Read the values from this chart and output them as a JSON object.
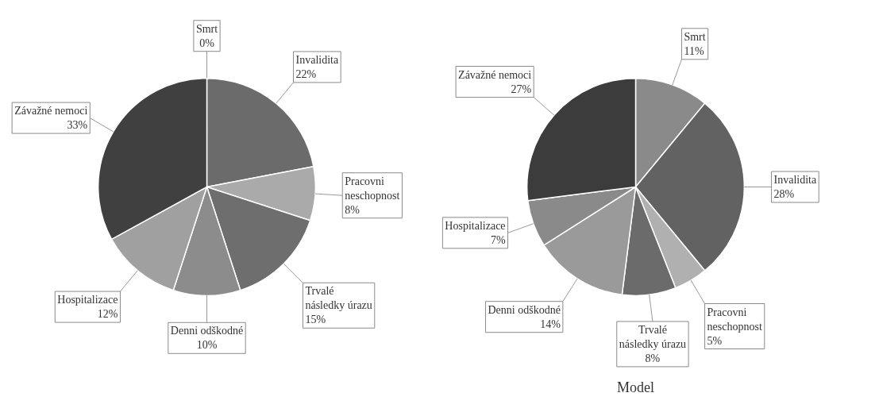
{
  "chart_data": [
    {
      "type": "pie",
      "categories": [
        "Smrt",
        "Invalidita",
        "Pracovni neschopnost",
        "Trvalé následky úrazu",
        "Denni odškodné",
        "Hospitalizace",
        "Závažné nemoci"
      ],
      "values": [
        0,
        22,
        8,
        15,
        10,
        12,
        33
      ],
      "value_labels": [
        "0%",
        "22%",
        "8%",
        "15%",
        "10%",
        "12%",
        "33%"
      ],
      "colors": [
        "#7a7a7a",
        "#6b6b6b",
        "#aaaaaa",
        "#6e6e6e",
        "#8c8c8c",
        "#a0a0a0",
        "#404040"
      ],
      "data_labels": true
    },
    {
      "type": "pie",
      "title": "Model",
      "categories": [
        "Smrt",
        "Invalidita",
        "Pracovni neschopnost",
        "Trvalé následky úrazu",
        "Denni odškodné",
        "Hospitalizace",
        "Závažné nemoci"
      ],
      "values": [
        11,
        28,
        5,
        8,
        14,
        7,
        27
      ],
      "value_labels": [
        "11%",
        "28%",
        "5%",
        "8%",
        "14%",
        "7%",
        "27%"
      ],
      "colors": [
        "#8a8a8a",
        "#626262",
        "#b0b0b0",
        "#6b6b6b",
        "#9a9a9a",
        "#8a8a8a",
        "#3c3c3c"
      ],
      "data_labels": true
    }
  ]
}
